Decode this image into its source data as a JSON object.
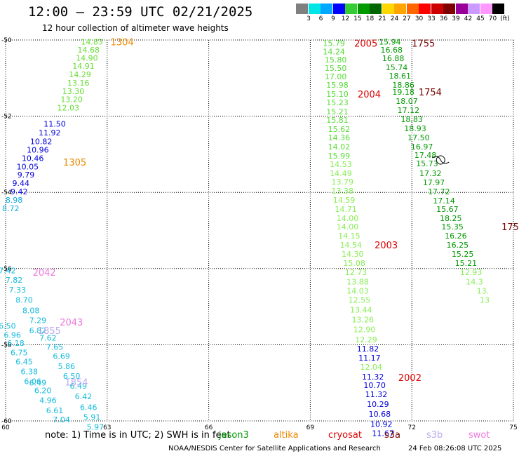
{
  "header": {
    "title": "12:00 – 23:59 UTC 02/21/2025",
    "subtitle": "12 hour collection of altimeter wave heights"
  },
  "colorbar": {
    "unit": "(ft)",
    "bins": [
      {
        "label": "3",
        "color": "#808080"
      },
      {
        "label": "6",
        "color": "#00e5e5"
      },
      {
        "label": "9",
        "color": "#00a8ff"
      },
      {
        "label": "12",
        "color": "#0000ff"
      },
      {
        "label": "15",
        "color": "#33cc33"
      },
      {
        "label": "18",
        "color": "#009900"
      },
      {
        "label": "21",
        "color": "#006600"
      },
      {
        "label": "24",
        "color": "#ffd700"
      },
      {
        "label": "27",
        "color": "#ffa500"
      },
      {
        "label": "30",
        "color": "#ff6600"
      },
      {
        "label": "33",
        "color": "#ff0000"
      },
      {
        "label": "36",
        "color": "#cc0000"
      },
      {
        "label": "39",
        "color": "#800000"
      },
      {
        "label": "42",
        "color": "#990099"
      },
      {
        "label": "45",
        "color": "#cc99ff"
      },
      {
        "label": "70",
        "color": "#ff99ff"
      },
      {
        "label": "",
        "color": "#000000"
      }
    ]
  },
  "map_axes": {
    "lon_ticks": [
      "60",
      "63",
      "66",
      "69",
      "72",
      "75"
    ],
    "lat_ticks": [
      "-50",
      "-52",
      "-54",
      "-56",
      "-58",
      "-60"
    ],
    "lon_range": [
      60,
      75
    ],
    "lat_range": [
      -50,
      -60
    ]
  },
  "tracks": [
    {
      "color": "#66dd33",
      "points": [
        {
          "lon": 62.55,
          "lat": -50.05,
          "v": "14.83"
        },
        {
          "lon": 62.45,
          "lat": -50.26,
          "v": "14.68"
        },
        {
          "lon": 62.4,
          "lat": -50.47,
          "v": "14.90"
        },
        {
          "lon": 62.3,
          "lat": -50.68,
          "v": "14.91"
        },
        {
          "lon": 62.2,
          "lat": -50.9,
          "v": "14.29"
        },
        {
          "lon": 62.15,
          "lat": -51.12,
          "v": "13.16"
        },
        {
          "lon": 62.0,
          "lat": -51.34,
          "v": "13.30"
        },
        {
          "lon": 61.95,
          "lat": -51.56,
          "v": "13.20"
        },
        {
          "lon": 61.85,
          "lat": -51.78,
          "v": "12.03"
        }
      ]
    },
    {
      "color": "#0000dd",
      "points": [
        {
          "lon": 61.45,
          "lat": -52.2,
          "v": "11.50"
        },
        {
          "lon": 61.3,
          "lat": -52.43,
          "v": "11.92"
        },
        {
          "lon": 61.05,
          "lat": -52.66,
          "v": "10.82"
        },
        {
          "lon": 60.95,
          "lat": -52.88,
          "v": "10.96"
        },
        {
          "lon": 60.8,
          "lat": -53.1,
          "v": "10.46"
        },
        {
          "lon": 60.65,
          "lat": -53.32,
          "v": "10.05"
        },
        {
          "lon": 60.6,
          "lat": -53.54,
          "v": "9.79"
        },
        {
          "lon": 60.45,
          "lat": -53.76,
          "v": "9.44"
        },
        {
          "lon": 60.4,
          "lat": -53.98,
          "v": "9.42"
        }
      ]
    },
    {
      "color": "#11aadd",
      "points": [
        {
          "lon": 60.25,
          "lat": -54.2,
          "v": "8.98"
        },
        {
          "lon": 60.15,
          "lat": -54.42,
          "v": "8.72"
        }
      ]
    },
    {
      "color": "#11bbdd",
      "points": [
        {
          "lon": 60.05,
          "lat": -56.05,
          "v": "7.42"
        },
        {
          "lon": 60.25,
          "lat": -56.3,
          "v": "7.82"
        },
        {
          "lon": 60.35,
          "lat": -56.56,
          "v": "7.33"
        },
        {
          "lon": 60.55,
          "lat": -56.82,
          "v": "8.70"
        },
        {
          "lon": 60.75,
          "lat": -57.1,
          "v": "8.08"
        },
        {
          "lon": 60.95,
          "lat": -57.36,
          "v": "7.29"
        },
        {
          "lon": 60.95,
          "lat": -57.62,
          "v": "6.82"
        },
        {
          "lon": 61.25,
          "lat": -57.82,
          "v": "7.62"
        },
        {
          "lon": 61.45,
          "lat": -58.06,
          "v": "7.65"
        },
        {
          "lon": 61.65,
          "lat": -58.3,
          "v": "6.69"
        },
        {
          "lon": 61.8,
          "lat": -58.56,
          "v": "5.86"
        },
        {
          "lon": 61.95,
          "lat": -58.82,
          "v": "6.50"
        },
        {
          "lon": 62.15,
          "lat": -59.08,
          "v": "6.49"
        },
        {
          "lon": 62.3,
          "lat": -59.36,
          "v": "6.42"
        },
        {
          "lon": 62.45,
          "lat": -59.64,
          "v": "6.46"
        },
        {
          "lon": 62.55,
          "lat": -59.9,
          "v": "5.91"
        },
        {
          "lon": 62.65,
          "lat": -60.16,
          "v": "5.97"
        }
      ]
    },
    {
      "color": "#11bbdd",
      "points": [
        {
          "lon": 60.05,
          "lat": -57.5,
          "v": "6.50"
        },
        {
          "lon": 60.2,
          "lat": -57.74,
          "v": "6.96"
        },
        {
          "lon": 60.3,
          "lat": -57.96,
          "v": "6.18"
        },
        {
          "lon": 60.4,
          "lat": -58.2,
          "v": "6.75"
        },
        {
          "lon": 60.55,
          "lat": -58.44,
          "v": "6.45"
        },
        {
          "lon": 60.7,
          "lat": -58.7,
          "v": "6.38"
        },
        {
          "lon": 60.8,
          "lat": -58.96,
          "v": "6.06"
        },
        {
          "lon": 60.95,
          "lat": -59.0,
          "v": "6.49"
        },
        {
          "lon": 61.1,
          "lat": -59.2,
          "v": "6.20"
        },
        {
          "lon": 61.25,
          "lat": -59.46,
          "v": "4.96"
        },
        {
          "lon": 61.45,
          "lat": -59.72,
          "v": "6.61"
        },
        {
          "lon": 61.65,
          "lat": -59.96,
          "v": "7.04"
        }
      ]
    },
    {
      "color": "#55dd33",
      "points": [
        {
          "lon": 69.7,
          "lat": -50.08,
          "v": "15.79"
        },
        {
          "lon": 69.7,
          "lat": -50.3,
          "v": "14.24"
        },
        {
          "lon": 69.75,
          "lat": -50.52,
          "v": "15.80"
        },
        {
          "lon": 69.75,
          "lat": -50.74,
          "v": "15.50"
        },
        {
          "lon": 69.75,
          "lat": -50.96,
          "v": "17.00"
        },
        {
          "lon": 69.8,
          "lat": -51.18,
          "v": "15.98"
        },
        {
          "lon": 69.8,
          "lat": -51.42,
          "v": "15.10"
        },
        {
          "lon": 69.8,
          "lat": -51.64,
          "v": "15.23"
        },
        {
          "lon": 69.8,
          "lat": -51.88,
          "v": "15.21"
        },
        {
          "lon": 69.8,
          "lat": -52.1,
          "v": "15.81"
        },
        {
          "lon": 69.85,
          "lat": -52.34,
          "v": "15.62"
        },
        {
          "lon": 69.85,
          "lat": -52.56,
          "v": "14.36"
        },
        {
          "lon": 69.85,
          "lat": -52.8,
          "v": "14.02"
        },
        {
          "lon": 69.85,
          "lat": -53.04,
          "v": "15.99"
        }
      ]
    },
    {
      "color": "#88ee55",
      "points": [
        {
          "lon": 69.9,
          "lat": -53.26,
          "v": "14.53"
        },
        {
          "lon": 69.9,
          "lat": -53.5,
          "v": "14.49"
        },
        {
          "lon": 69.95,
          "lat": -53.72,
          "v": "13.79"
        },
        {
          "lon": 69.95,
          "lat": -53.96,
          "v": "13.38"
        },
        {
          "lon": 70.0,
          "lat": -54.2,
          "v": "14.59"
        },
        {
          "lon": 70.05,
          "lat": -54.44,
          "v": "14.71"
        },
        {
          "lon": 70.1,
          "lat": -54.68,
          "v": "14.00"
        },
        {
          "lon": 70.1,
          "lat": -54.9,
          "v": "14.00"
        },
        {
          "lon": 70.15,
          "lat": -55.14,
          "v": "14.15"
        },
        {
          "lon": 70.2,
          "lat": -55.38,
          "v": "14.54"
        },
        {
          "lon": 70.25,
          "lat": -55.62,
          "v": "14.30"
        },
        {
          "lon": 70.3,
          "lat": -55.86,
          "v": "15.08"
        },
        {
          "lon": 70.35,
          "lat": -56.1,
          "v": "12.73"
        },
        {
          "lon": 70.4,
          "lat": -56.34,
          "v": "13.88"
        },
        {
          "lon": 70.4,
          "lat": -56.58,
          "v": "14.03"
        },
        {
          "lon": 70.45,
          "lat": -56.82,
          "v": "12.55"
        },
        {
          "lon": 70.5,
          "lat": -57.08,
          "v": "13.44"
        },
        {
          "lon": 70.55,
          "lat": -57.34,
          "v": "13.26"
        },
        {
          "lon": 70.6,
          "lat": -57.6,
          "v": "12.90"
        },
        {
          "lon": 70.65,
          "lat": -57.86,
          "v": "12.29"
        }
      ]
    },
    {
      "color": "#0000dd",
      "points": [
        {
          "lon": 70.7,
          "lat": -58.1,
          "v": "11.82"
        },
        {
          "lon": 70.75,
          "lat": -58.34,
          "v": "11.17"
        }
      ]
    },
    {
      "color": "#88ee55",
      "points": [
        {
          "lon": 70.8,
          "lat": -58.58,
          "v": "12.04"
        }
      ]
    },
    {
      "color": "#0000dd",
      "points": [
        {
          "lon": 70.85,
          "lat": -58.84,
          "v": "11.32"
        },
        {
          "lon": 70.9,
          "lat": -59.06,
          "v": "10.70"
        },
        {
          "lon": 70.95,
          "lat": -59.3,
          "v": "11.32"
        },
        {
          "lon": 71.0,
          "lat": -59.56,
          "v": "10.29"
        },
        {
          "lon": 71.05,
          "lat": -59.82,
          "v": "10.68"
        },
        {
          "lon": 71.1,
          "lat": -60.08,
          "v": "10.92"
        },
        {
          "lon": 71.15,
          "lat": -60.32,
          "v": "11.67"
        }
      ]
    },
    {
      "color": "#009900",
      "points": [
        {
          "lon": 71.35,
          "lat": -50.05,
          "v": "15.94"
        },
        {
          "lon": 71.4,
          "lat": -50.26,
          "v": "16.68"
        },
        {
          "lon": 71.45,
          "lat": -50.48,
          "v": "16.88"
        },
        {
          "lon": 71.55,
          "lat": -50.72,
          "v": "15.74"
        },
        {
          "lon": 71.65,
          "lat": -50.94,
          "v": "18.61"
        },
        {
          "lon": 71.75,
          "lat": -51.18,
          "v": "18.86"
        },
        {
          "lon": 71.75,
          "lat": -51.36,
          "v": "19.18"
        },
        {
          "lon": 71.85,
          "lat": -51.6,
          "v": "18.07"
        },
        {
          "lon": 71.9,
          "lat": -51.84,
          "v": "17.12"
        },
        {
          "lon": 72.0,
          "lat": -52.08,
          "v": "18.83"
        },
        {
          "lon": 72.1,
          "lat": -52.32,
          "v": "18.93"
        },
        {
          "lon": 72.2,
          "lat": -52.56,
          "v": "17.50"
        },
        {
          "lon": 72.3,
          "lat": -52.8,
          "v": "16.97"
        },
        {
          "lon": 72.4,
          "lat": -53.02,
          "v": "17.48"
        },
        {
          "lon": 72.45,
          "lat": -53.24,
          "v": "15.73"
        },
        {
          "lon": 72.55,
          "lat": -53.5,
          "v": "17.32"
        },
        {
          "lon": 72.65,
          "lat": -53.74,
          "v": "17.97"
        },
        {
          "lon": 72.8,
          "lat": -53.98,
          "v": "17.72"
        },
        {
          "lon": 72.95,
          "lat": -54.22,
          "v": "17.14"
        },
        {
          "lon": 73.05,
          "lat": -54.44,
          "v": "15.67"
        },
        {
          "lon": 73.15,
          "lat": -54.68,
          "v": "18.25"
        },
        {
          "lon": 73.2,
          "lat": -54.9,
          "v": "15.35"
        },
        {
          "lon": 73.3,
          "lat": -55.14,
          "v": "16.26"
        },
        {
          "lon": 73.35,
          "lat": -55.38,
          "v": "16.25"
        },
        {
          "lon": 73.5,
          "lat": -55.62,
          "v": "15.25"
        },
        {
          "lon": 73.6,
          "lat": -55.86,
          "v": "15.21"
        }
      ]
    },
    {
      "color": "#88ee55",
      "points": [
        {
          "lon": 73.75,
          "lat": -56.1,
          "v": "12.93"
        },
        {
          "lon": 73.85,
          "lat": -56.34,
          "v": "14.3"
        },
        {
          "lon": 74.1,
          "lat": -56.58,
          "v": "13."
        },
        {
          "lon": 74.15,
          "lat": -56.82,
          "v": "13"
        }
      ]
    }
  ],
  "time_labels": [
    {
      "lon": 63.1,
      "lat": -50.05,
      "text": "1304",
      "color": "#ee8800"
    },
    {
      "lon": 61.7,
      "lat": -53.2,
      "text": "1305",
      "color": "#ee8800"
    },
    {
      "lon": 60.8,
      "lat": -56.1,
      "text": "2042",
      "color": "#ee77dd"
    },
    {
      "lon": 61.6,
      "lat": -57.4,
      "text": "2043",
      "color": "#ee77dd"
    },
    {
      "lon": 60.95,
      "lat": -57.62,
      "text": "1855",
      "color": "#bbaaee"
    },
    {
      "lon": 61.75,
      "lat": -58.98,
      "text": "1854",
      "color": "#bbaaee"
    },
    {
      "lon": 70.3,
      "lat": -50.08,
      "text": "2005",
      "color": "#dd0000"
    },
    {
      "lon": 70.4,
      "lat": -51.42,
      "text": "2004",
      "color": "#dd0000"
    },
    {
      "lon": 70.9,
      "lat": -55.38,
      "text": "2003",
      "color": "#dd0000"
    },
    {
      "lon": 71.6,
      "lat": -58.86,
      "text": "2002",
      "color": "#dd0000"
    },
    {
      "lon": 72.0,
      "lat": -50.08,
      "text": "1755",
      "color": "#770000"
    },
    {
      "lon": 72.2,
      "lat": -51.36,
      "text": "1754",
      "color": "#770000"
    },
    {
      "lon": 74.65,
      "lat": -54.9,
      "text": "175",
      "color": "#770000"
    }
  ],
  "legend": {
    "note": "note:  1) Time is in UTC;  2) SWH is in feet",
    "missions": [
      {
        "name": "jason3",
        "color": "#009900"
      },
      {
        "name": "altika",
        "color": "#ee8800"
      },
      {
        "name": "cryosat",
        "color": "#dd0000"
      },
      {
        "name": "s3a",
        "color": "#770000"
      },
      {
        "name": "s3b",
        "color": "#bbaaee"
      },
      {
        "name": "swot",
        "color": "#ee77dd"
      }
    ]
  },
  "footer": {
    "agency": "NOAA/NESDIS Center for Satellite Applications and Research",
    "timestamp": "24 Feb 08:26:08 UTC 2025"
  }
}
